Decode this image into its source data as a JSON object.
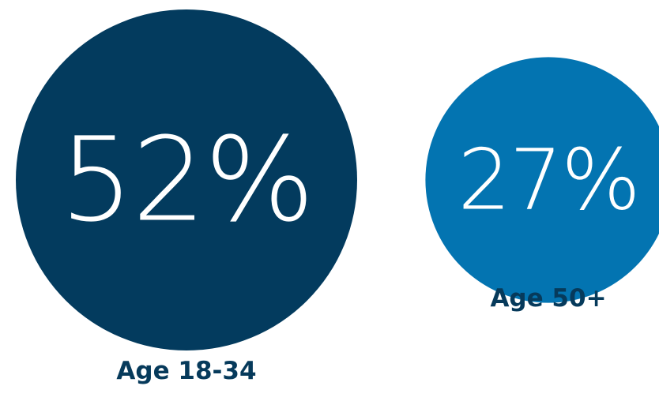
{
  "chart_data": {
    "type": "bubble",
    "unit": "%",
    "categories": [
      "Age 18-34",
      "Age 50+"
    ],
    "values": [
      52,
      27
    ],
    "value_labels": [
      "52%",
      "27%"
    ],
    "colors": [
      "#033b5e",
      "#0374b1"
    ],
    "label_color": "#063a5b",
    "value_text_color": "#ffffff"
  }
}
